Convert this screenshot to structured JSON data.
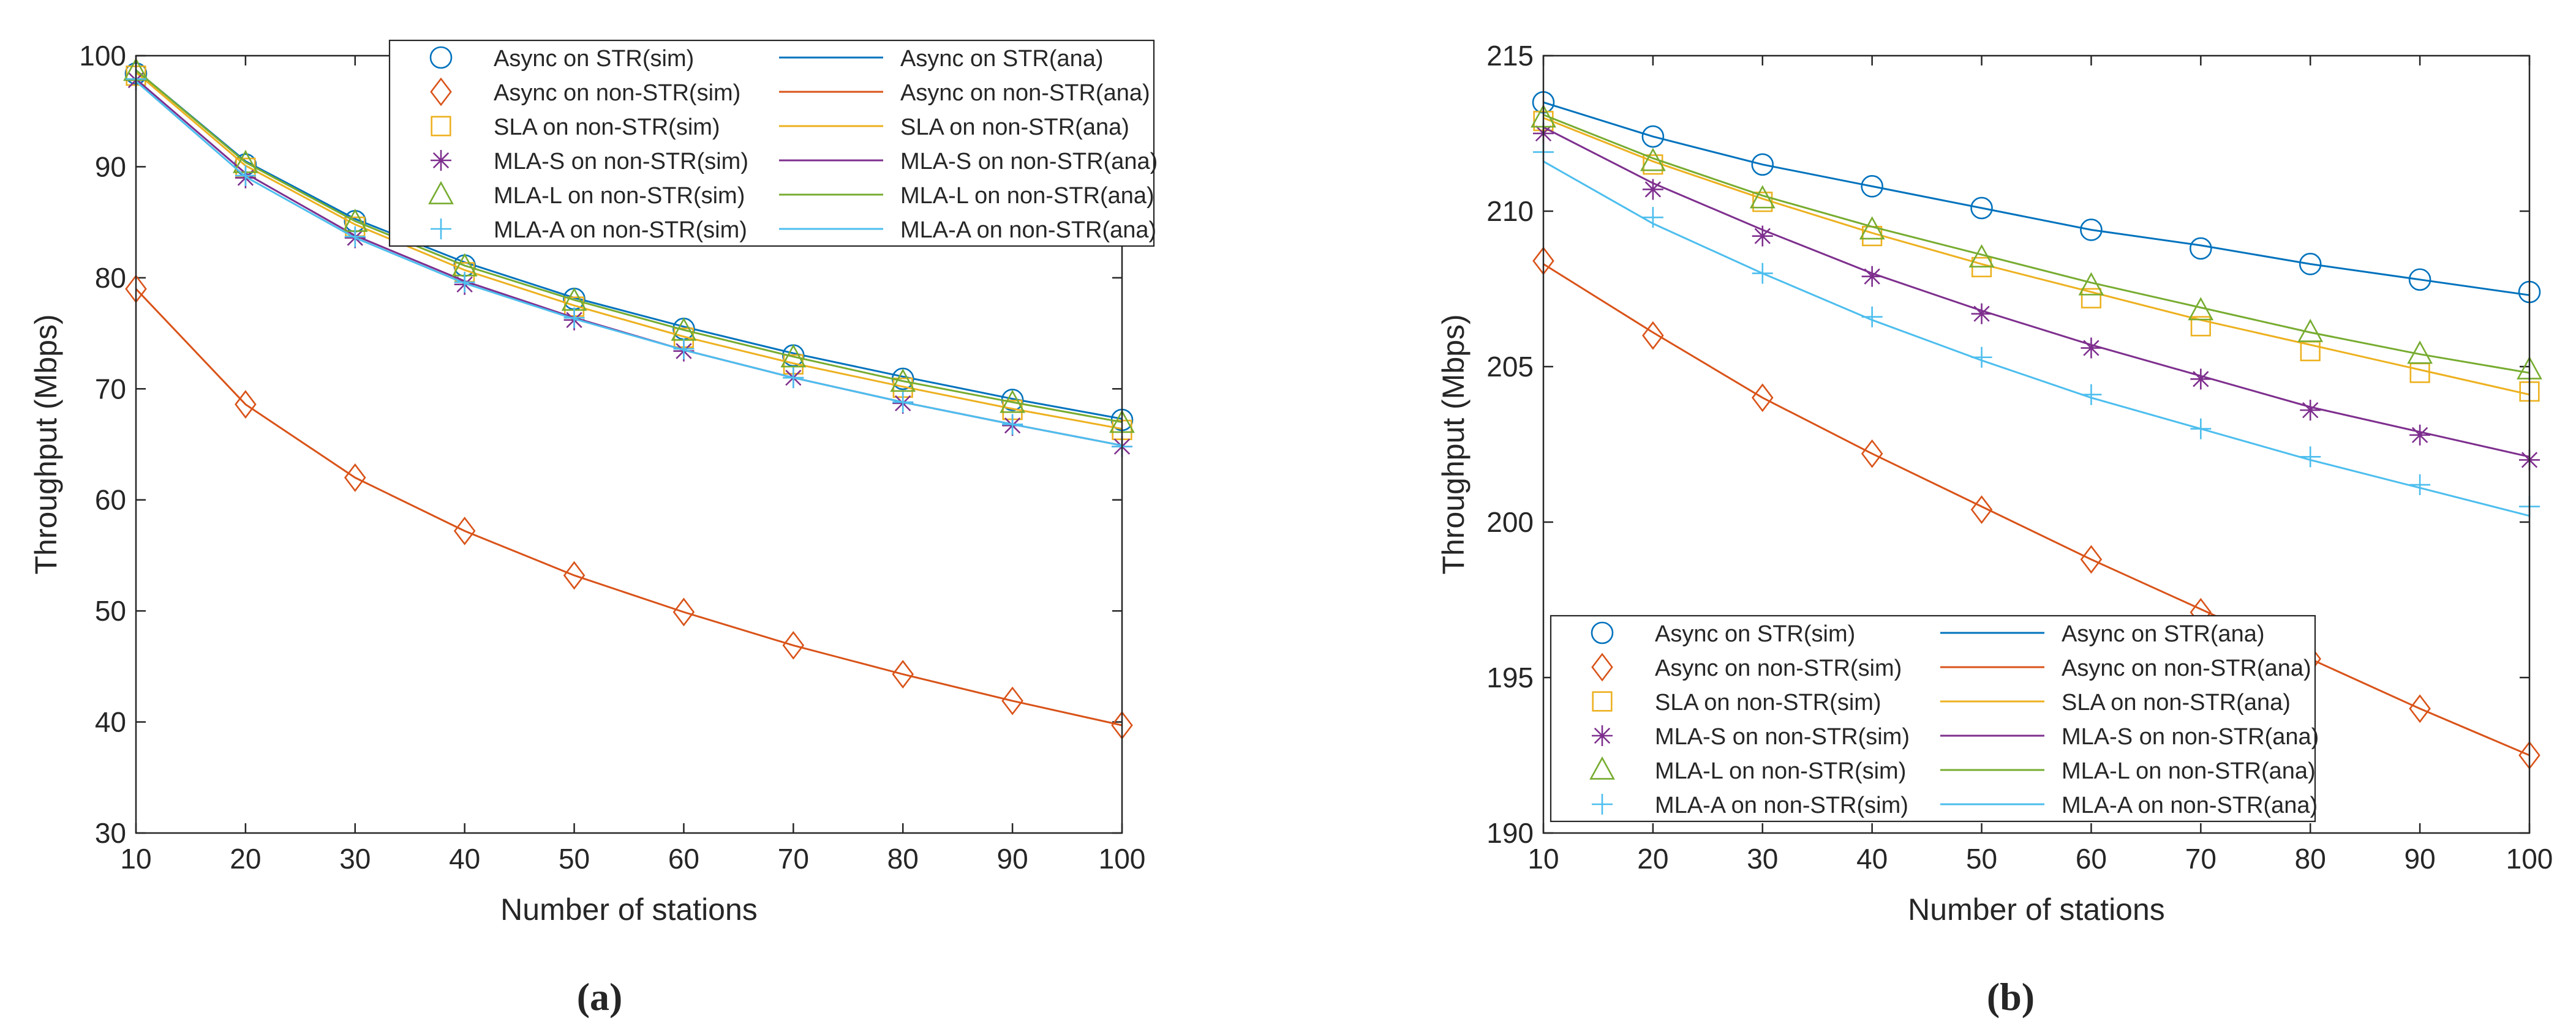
{
  "figure": {
    "caption_a": "(a)",
    "caption_b": "(b)"
  },
  "colors": {
    "async_str": "#0072BD",
    "async_nonstr": "#D95319",
    "sla": "#EDB120",
    "mla_s": "#7E2F8E",
    "mla_l": "#77AC30",
    "mla_a": "#4DBEEE",
    "axis": "#262626"
  },
  "chart_data": [
    {
      "id": "a",
      "type": "line",
      "xlabel": "Number of stations",
      "ylabel": "Throughput (Mbps)",
      "xlim": [
        10,
        100
      ],
      "ylim": [
        30,
        100
      ],
      "xticks": [
        10,
        20,
        30,
        40,
        50,
        60,
        70,
        80,
        90,
        100
      ],
      "yticks": [
        30,
        40,
        50,
        60,
        70,
        80,
        90,
        100
      ],
      "x": [
        10,
        20,
        30,
        40,
        50,
        60,
        70,
        80,
        90,
        100
      ],
      "legend_position": "top-right",
      "legend": [
        {
          "sim": "Async on STR(sim)",
          "ana": "Async on STR(ana)",
          "marker": "circle",
          "color": "#0072BD"
        },
        {
          "sim": "Async on non-STR(sim)",
          "ana": "Async on non-STR(ana)",
          "marker": "diamond",
          "color": "#D95319"
        },
        {
          "sim": "SLA on non-STR(sim)",
          "ana": "SLA on non-STR(ana)",
          "marker": "square",
          "color": "#EDB120"
        },
        {
          "sim": "MLA-S on non-STR(sim)",
          "ana": "MLA-S on non-STR(ana)",
          "marker": "asterisk",
          "color": "#7E2F8E"
        },
        {
          "sim": "MLA-L on non-STR(sim)",
          "ana": "MLA-L on non-STR(ana)",
          "marker": "triangle",
          "color": "#77AC30"
        },
        {
          "sim": "MLA-A on non-STR(sim)",
          "ana": "MLA-A on non-STR(ana)",
          "marker": "plus",
          "color": "#4DBEEE"
        }
      ],
      "series": [
        {
          "name": "Async on STR",
          "marker": "circle",
          "color": "#0072BD",
          "sim": [
            98.4,
            90.2,
            85.1,
            81.1,
            78.1,
            75.4,
            73.0,
            70.9,
            69.0,
            67.2
          ],
          "ana": [
            98.7,
            90.5,
            85.3,
            81.4,
            78.2,
            75.6,
            73.2,
            71.1,
            69.1,
            67.3
          ]
        },
        {
          "name": "Async on non-STR",
          "marker": "diamond",
          "color": "#D95319",
          "sim": [
            79.0,
            68.6,
            62.0,
            57.2,
            53.2,
            49.9,
            46.9,
            44.3,
            41.9,
            39.7
          ],
          "ana": [
            79.0,
            68.6,
            62.0,
            57.2,
            53.2,
            49.9,
            46.9,
            44.3,
            41.9,
            39.7
          ]
        },
        {
          "name": "SLA on non-STR",
          "marker": "square",
          "color": "#EDB120",
          "sim": [
            98.2,
            89.9,
            84.6,
            80.5,
            77.4,
            74.6,
            72.2,
            70.1,
            68.1,
            66.3
          ],
          "ana": [
            98.5,
            90.1,
            84.8,
            80.7,
            77.5,
            74.7,
            72.3,
            70.2,
            68.2,
            66.4
          ]
        },
        {
          "name": "MLA-S on non-STR",
          "marker": "asterisk",
          "color": "#7E2F8E",
          "sim": [
            97.8,
            89.0,
            83.6,
            79.4,
            76.2,
            73.4,
            71.0,
            68.7,
            66.7,
            64.8
          ],
          "ana": [
            97.9,
            89.4,
            83.8,
            79.7,
            76.4,
            73.5,
            71.0,
            68.8,
            66.8,
            64.9
          ]
        },
        {
          "name": "MLA-L on non-STR",
          "marker": "triangle",
          "color": "#77AC30",
          "sim": [
            98.6,
            90.3,
            85.0,
            81.0,
            77.9,
            75.2,
            72.8,
            70.6,
            68.7,
            66.9
          ],
          "ana": [
            98.7,
            90.4,
            85.1,
            81.1,
            78.0,
            75.3,
            72.9,
            70.7,
            68.8,
            67.0
          ]
        },
        {
          "name": "MLA-A on non-STR",
          "marker": "plus",
          "color": "#4DBEEE",
          "sim": [
            97.9,
            89.2,
            83.7,
            79.6,
            76.4,
            73.6,
            71.0,
            68.8,
            66.8,
            64.8
          ],
          "ana": [
            97.7,
            89.1,
            83.6,
            79.5,
            76.3,
            73.5,
            71.0,
            68.8,
            66.8,
            64.9
          ]
        }
      ]
    },
    {
      "id": "b",
      "type": "line",
      "xlabel": "Number of stations",
      "ylabel": "Throughput (Mbps)",
      "xlim": [
        10,
        100
      ],
      "ylim": [
        190,
        215
      ],
      "xticks": [
        10,
        20,
        30,
        40,
        50,
        60,
        70,
        80,
        90,
        100
      ],
      "yticks": [
        190,
        195,
        200,
        205,
        210,
        215
      ],
      "x": [
        10,
        20,
        30,
        40,
        50,
        60,
        70,
        80,
        90,
        100
      ],
      "legend_position": "bottom-left",
      "legend": [
        {
          "sim": "Async on STR(sim)",
          "ana": "Async on STR(ana)",
          "marker": "circle",
          "color": "#0072BD"
        },
        {
          "sim": "Async on non-STR(sim)",
          "ana": "Async on non-STR(ana)",
          "marker": "diamond",
          "color": "#D95319"
        },
        {
          "sim": "SLA on non-STR(sim)",
          "ana": "SLA on non-STR(ana)",
          "marker": "square",
          "color": "#EDB120"
        },
        {
          "sim": "MLA-S on non-STR(sim)",
          "ana": "MLA-S on non-STR(ana)",
          "marker": "asterisk",
          "color": "#7E2F8E"
        },
        {
          "sim": "MLA-L on non-STR(sim)",
          "ana": "MLA-L on non-STR(ana)",
          "marker": "triangle",
          "color": "#77AC30"
        },
        {
          "sim": "MLA-A on non-STR(sim)",
          "ana": "MLA-A on non-STR(ana)",
          "marker": "plus",
          "color": "#4DBEEE"
        }
      ],
      "series": [
        {
          "name": "Async on STR",
          "marker": "circle",
          "color": "#0072BD",
          "sim": [
            213.5,
            212.4,
            211.5,
            210.8,
            210.1,
            209.4,
            208.8,
            208.3,
            207.8,
            207.4
          ],
          "ana": [
            213.5,
            212.4,
            211.5,
            210.8,
            210.1,
            209.4,
            208.9,
            208.3,
            207.8,
            207.3
          ]
        },
        {
          "name": "Async on non-STR",
          "marker": "diamond",
          "color": "#D95319",
          "sim": [
            208.4,
            206.0,
            204.0,
            202.2,
            200.4,
            198.8,
            197.1,
            195.6,
            194.0,
            192.5
          ],
          "ana": [
            208.3,
            206.1,
            204.0,
            202.2,
            200.5,
            198.8,
            197.2,
            195.6,
            194.0,
            192.5
          ]
        },
        {
          "name": "SLA on non-STR",
          "marker": "square",
          "color": "#EDB120",
          "sim": [
            212.9,
            211.5,
            210.3,
            209.2,
            208.2,
            207.2,
            206.3,
            205.5,
            204.8,
            204.2
          ],
          "ana": [
            213.0,
            211.6,
            210.4,
            209.3,
            208.3,
            207.4,
            206.5,
            205.7,
            204.9,
            204.1
          ]
        },
        {
          "name": "MLA-S on non-STR",
          "marker": "asterisk",
          "color": "#7E2F8E",
          "sim": [
            212.5,
            210.7,
            209.2,
            207.9,
            206.7,
            205.6,
            204.6,
            203.6,
            202.8,
            202.0
          ],
          "ana": [
            212.7,
            210.9,
            209.4,
            208.0,
            206.8,
            205.7,
            204.7,
            203.7,
            202.9,
            202.1
          ]
        },
        {
          "name": "MLA-L on non-STR",
          "marker": "triangle",
          "color": "#77AC30",
          "sim": [
            213.0,
            211.6,
            210.4,
            209.4,
            208.5,
            207.6,
            206.8,
            206.1,
            205.4,
            204.9
          ],
          "ana": [
            213.1,
            211.7,
            210.5,
            209.5,
            208.6,
            207.7,
            206.9,
            206.1,
            205.4,
            204.8
          ]
        },
        {
          "name": "MLA-A on non-STR",
          "marker": "plus",
          "color": "#4DBEEE",
          "sim": [
            211.9,
            209.8,
            208.0,
            206.6,
            205.3,
            204.1,
            203.0,
            202.1,
            201.2,
            200.5
          ],
          "ana": [
            211.6,
            209.6,
            208.0,
            206.5,
            205.2,
            204.0,
            203.0,
            202.0,
            201.1,
            200.2
          ]
        }
      ]
    }
  ]
}
